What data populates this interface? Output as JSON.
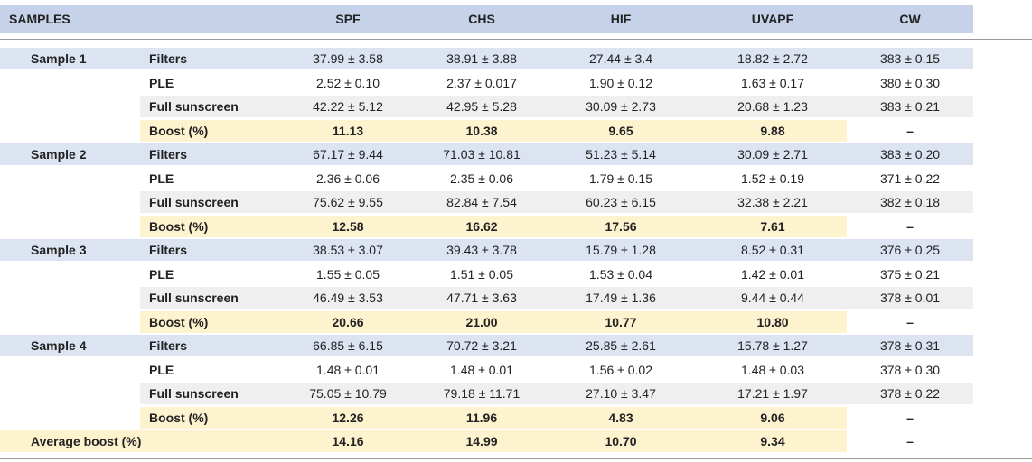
{
  "table": {
    "header": {
      "samples": "SAMPLES",
      "columns": [
        "SPF",
        "CHS",
        "HIF",
        "UVAPF",
        "CW"
      ]
    },
    "groups": [
      {
        "sample": "Sample 1",
        "rows": [
          {
            "label": "Filters",
            "cells": [
              "37.99 ± 3.58",
              "38.91 ± 3.88",
              "27.44 ± 3.4",
              "18.82 ± 2.72",
              "383 ± 0.15"
            ]
          },
          {
            "label": "PLE",
            "cells": [
              "2.52 ± 0.10",
              "2.37 ± 0.017",
              "1.90 ± 0.12",
              "1.63 ± 0.17",
              "380 ± 0.30"
            ]
          },
          {
            "label": "Full sunscreen",
            "cells": [
              "42.22 ± 5.12",
              "42.95 ± 5.28",
              "30.09 ± 2.73",
              "20.68 ± 1.23",
              "383 ± 0.21"
            ]
          },
          {
            "label": "Boost (%)",
            "cells": [
              "11.13",
              "10.38",
              "9.65",
              "9.88",
              "–"
            ]
          }
        ]
      },
      {
        "sample": "Sample 2",
        "rows": [
          {
            "label": "Filters",
            "cells": [
              "67.17 ± 9.44",
              "71.03 ± 10.81",
              "51.23 ± 5.14",
              "30.09 ± 2.71",
              "383 ± 0.20"
            ]
          },
          {
            "label": "PLE",
            "cells": [
              "2.36 ± 0.06",
              "2.35 ± 0.06",
              "1.79 ± 0.15",
              "1.52 ± 0.19",
              "371 ± 0.22"
            ]
          },
          {
            "label": "Full sunscreen",
            "cells": [
              "75.62 ± 9.55",
              "82.84 ± 7.54",
              "60.23 ± 6.15",
              "32.38 ± 2.21",
              "382 ± 0.18"
            ]
          },
          {
            "label": "Boost (%)",
            "cells": [
              "12.58",
              "16.62",
              "17.56",
              "7.61",
              "–"
            ]
          }
        ]
      },
      {
        "sample": "Sample 3",
        "rows": [
          {
            "label": "Filters",
            "cells": [
              "38.53 ± 3.07",
              "39.43 ± 3.78",
              "15.79 ± 1.28",
              "8.52 ± 0.31",
              "376 ± 0.25"
            ]
          },
          {
            "label": "PLE",
            "cells": [
              "1.55 ± 0.05",
              "1.51 ± 0.05",
              "1.53 ± 0.04",
              "1.42 ± 0.01",
              "375 ± 0.21"
            ]
          },
          {
            "label": "Full sunscreen",
            "cells": [
              "46.49 ± 3.53",
              "47.71 ± 3.63",
              "17.49 ± 1.36",
              "9.44 ± 0.44",
              "378 ± 0.01"
            ]
          },
          {
            "label": "Boost (%)",
            "cells": [
              "20.66",
              "21.00",
              "10.77",
              "10.80",
              "–"
            ]
          }
        ]
      },
      {
        "sample": "Sample 4",
        "rows": [
          {
            "label": "Filters",
            "cells": [
              "66.85 ± 6.15",
              "70.72 ± 3.21",
              "25.85 ± 2.61",
              "15.78 ± 1.27",
              "378 ± 0.31"
            ]
          },
          {
            "label": "PLE",
            "cells": [
              "1.48 ± 0.01",
              "1.48 ± 0.01",
              "1.56 ± 0.02",
              "1.48 ± 0.03",
              "378 ± 0.30"
            ]
          },
          {
            "label": "Full sunscreen",
            "cells": [
              "75.05 ± 10.79",
              "79.18 ± 11.71",
              "27.10 ± 3.47",
              "17.21 ± 1.97",
              "378 ± 0.22"
            ]
          },
          {
            "label": "Boost (%)",
            "cells": [
              "12.26",
              "11.96",
              "4.83",
              "9.06",
              "–"
            ]
          }
        ]
      }
    ],
    "average": {
      "label": "Average boost (%)",
      "cells": [
        "14.16",
        "14.99",
        "10.70",
        "9.34",
        "–"
      ]
    }
  }
}
